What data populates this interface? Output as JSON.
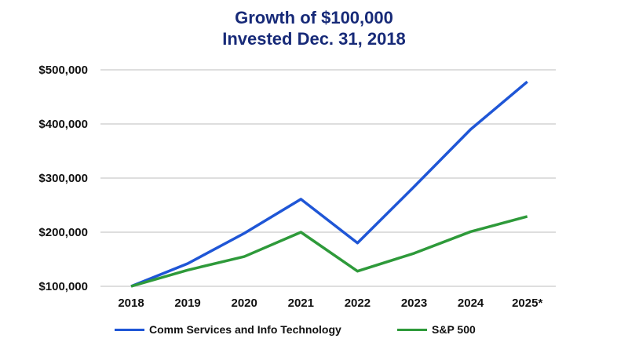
{
  "chart_data": {
    "type": "line",
    "title": [
      "Growth of $100,000",
      "Invested Dec. 31, 2018"
    ],
    "categories": [
      "2018",
      "2019",
      "2020",
      "2021",
      "2022",
      "2023",
      "2024",
      "2025*"
    ],
    "ylim": [
      100000,
      500000
    ],
    "yticks": [
      100000,
      200000,
      300000,
      400000,
      500000
    ],
    "ytick_labels": [
      "$100,000",
      "$200,000",
      "$300,000",
      "$400,000",
      "$500,000"
    ],
    "grid": true,
    "legend_position": "bottom",
    "series": [
      {
        "name": "Comm Services and Info Technology",
        "color": "#1f56d6",
        "values": [
          100000,
          142000,
          198000,
          261000,
          180000,
          284000,
          390000,
          478000
        ]
      },
      {
        "name": "S&P 500",
        "color": "#2e9a3a",
        "values": [
          100000,
          130000,
          155000,
          200000,
          128000,
          161000,
          201000,
          229000
        ]
      }
    ]
  }
}
